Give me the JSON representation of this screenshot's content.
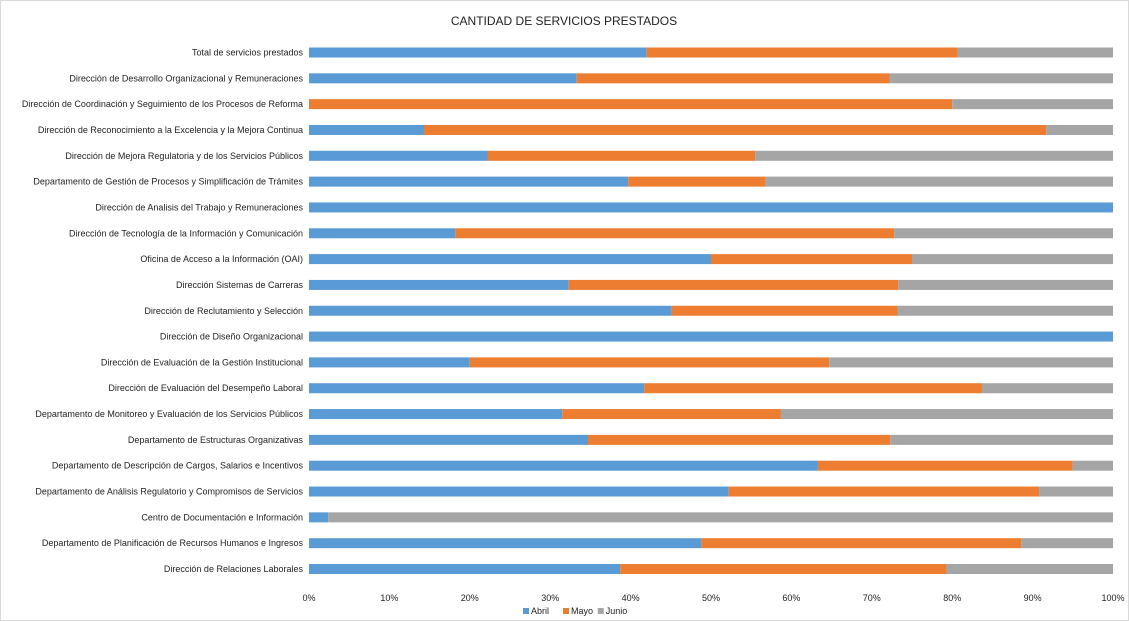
{
  "chart_data": {
    "type": "bar",
    "orientation": "horizontal",
    "stacking": "percent",
    "title": "CANTIDAD DE SERVICIOS PRESTADOS",
    "xlabel": "",
    "ylabel": "",
    "xlim": [
      0,
      100
    ],
    "x_ticks": [
      "0%",
      "10%",
      "20%",
      "30%",
      "40%",
      "50%",
      "60%",
      "70%",
      "80%",
      "90%",
      "100%"
    ],
    "grid": false,
    "legend_position": "bottom",
    "categories": [
      "Total de servicios prestados",
      "Dirección de Desarrollo Organizacional y Remuneraciones",
      "Dirección de Coordinación y Seguimiento de los Procesos de Reforma",
      "Dirección de Reconocimiento a la Excelencia y la Mejora Continua",
      "Dirección de Mejora Regulatoria y de los Servicios Públicos",
      "Departamento de Gestión de Procesos y Simplificación de Trámites",
      "Dirección de Analisis del Trabajo y Remuneraciones",
      "Dirección de Tecnología de la Información y Comunicación",
      "Oficina de Acceso a la Información (OAI)",
      "Dirección Sistemas de Carreras",
      "Dirección de Reclutamiento y Selección",
      "Dirección de Diseño Organizacional",
      "Dirección de Evaluación de la Gestión Institucional",
      "Dirección de Evaluación del Desempeño Laboral",
      "Departamento de Monitoreo y Evaluación de los Servicios Públicos",
      "Departamento de Estructuras Organizativas",
      "Departamento de Descripción de Cargos, Salarios e Incentivos",
      "Departamento de Análisis Regulatorio y Compromisos de Servicios",
      "Centro de Documentación e Información",
      "Departamento de Planificación de Recursos Humanos e Ingresos",
      "Dirección de Relaciones Laborales"
    ],
    "series": [
      {
        "name": "Abril",
        "color": "#5b9bd5",
        "values": [
          42,
          33.3,
          0,
          14.3,
          22.2,
          39.7,
          100,
          18.2,
          50,
          32.3,
          45.1,
          100,
          20,
          41.7,
          31.5,
          34.7,
          63.3,
          52.2,
          2.4,
          48.8,
          38.7
        ]
      },
      {
        "name": "Mayo",
        "color": "#ed7d31",
        "values": [
          38.7,
          38.9,
          80,
          77.4,
          33.3,
          17.1,
          0,
          54.6,
          25,
          41,
          28.1,
          0,
          44.7,
          42,
          27.2,
          37.6,
          31.7,
          38.6,
          0,
          39.8,
          40.6
        ]
      },
      {
        "name": "Junio",
        "color": "#a5a5a5",
        "values": [
          19.3,
          27.8,
          20,
          8.3,
          44.5,
          43.2,
          0,
          27.2,
          25,
          26.7,
          26.8,
          0,
          35.3,
          16.3,
          41.3,
          27.7,
          5,
          9.2,
          97.6,
          11.4,
          20.7
        ]
      }
    ]
  }
}
